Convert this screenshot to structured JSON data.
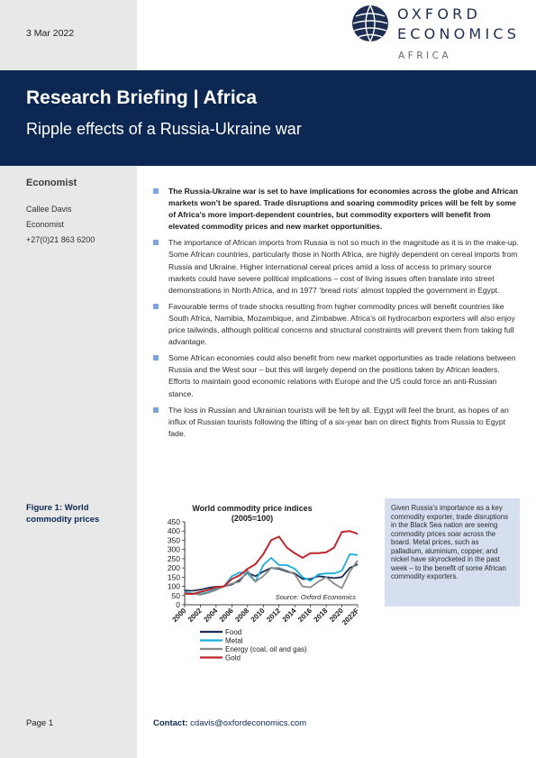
{
  "date": "3 Mar 2022",
  "logo": {
    "line1": "OXFORD",
    "line2": "ECONOMICS",
    "region": "AFRICA"
  },
  "banner": {
    "title": "Research Briefing | Africa",
    "subtitle": "Ripple effects of a Russia-Ukraine war"
  },
  "author": {
    "role": "Economist",
    "name": "Callee Davis",
    "title": "Economist",
    "phone": "+27(0)21 863 6200"
  },
  "bullets": [
    "The Russia-Ukraine war is set to have implications for economies across the globe and African markets won’t be spared. Trade disruptions and soaring commodity prices will be felt by some of Africa’s more import-dependent countries, but commodity exporters will benefit from elevated commodity prices and new market opportunities.",
    "The importance of African imports from Russia is not so much in the magnitude as it is in the make-up. Some African countries, particularly those in North Africa, are highly dependent on cereal imports from Russia and Ukraine. Higher international cereal prices amid a loss of access to primary source markets could have severe political implications – cost of living issues often translate into street demonstrations in North Africa, and in 1977 ‘bread riots’ almost toppled the government in Egypt.",
    "Favourable terms of trade shocks resulting from higher commodity prices will benefit countries like South Africa, Namibia, Mozambique, and Zimbabwe. Africa’s oil hydrocarbon exporters will also enjoy price tailwinds, although political concerns and structural constraints will prevent them from taking full advantage.",
    "Some African economies could also benefit from new market opportunities as trade relations between Russia and the West sour – but this will largely depend on the positions taken by African leaders. Efforts to maintain good economic relations with Europe and the US could force an anti-Russian stance.",
    "The loss in Russian and Ukrainian tourists will be felt by all. Egypt will feel the brunt, as hopes of an influx of Russian tourists following the lifting of a six-year ban on direct flights from Russia to Egypt fade."
  ],
  "figure": {
    "label": "Figure 1: World commodity prices"
  },
  "callout": "Given Russia’s importance as a key commodity exporter, trade disruptions in the Black Sea nation are seeing commodity prices soar across the board. Metal prices, such as palladium, aluminium, copper, and nickel have skyrocketed in the past week – to the benefit of some African commodity exporters.",
  "footer": {
    "page": "Page 1",
    "contact_label": "Contact:",
    "contact_email": "cdavis@oxfordeconomics.com"
  },
  "colors": {
    "navy": "#0b2752",
    "bullet": "#7fa4d9",
    "callout_bg": "#d5dff0",
    "sidebar_bg": "#e8e8e8"
  },
  "chart_data": {
    "type": "line",
    "title": "World commodity price indices",
    "subtitle": "(2005=100)",
    "source": "Source: Oxford Economics",
    "x": [
      "2000",
      "2001",
      "2002",
      "2003",
      "2004",
      "2005",
      "2006",
      "2007",
      "2008",
      "2009",
      "2010",
      "2011",
      "2012",
      "2013",
      "2014",
      "2015",
      "2016",
      "2017",
      "2018",
      "2019",
      "2020",
      "2021",
      "2022F"
    ],
    "xticks": [
      "2000",
      "2002",
      "2004",
      "2006",
      "2008",
      "2010",
      "2012",
      "2014",
      "2016",
      "2018",
      "2020",
      "2022F"
    ],
    "ylim": [
      0,
      450
    ],
    "yticks": [
      0,
      50,
      100,
      150,
      200,
      250,
      300,
      350,
      400,
      450
    ],
    "legend_position": "bottom",
    "grid": false,
    "series": [
      {
        "name": "Food",
        "color": "#1d2e52",
        "values": [
          78,
          76,
          82,
          92,
          98,
          100,
          110,
          135,
          175,
          155,
          180,
          200,
          195,
          180,
          170,
          140,
          140,
          155,
          150,
          145,
          150,
          200,
          220
        ]
      },
      {
        "name": "Metal",
        "color": "#1aaedc",
        "values": [
          70,
          62,
          60,
          68,
          90,
          100,
          155,
          175,
          170,
          125,
          215,
          255,
          215,
          215,
          195,
          150,
          130,
          165,
          170,
          170,
          185,
          275,
          270
        ]
      },
      {
        "name": "Energy (coal, oil and gas)",
        "color": "#8a8a8a",
        "values": [
          65,
          60,
          55,
          65,
          80,
          100,
          115,
          125,
          185,
          125,
          155,
          200,
          200,
          185,
          165,
          100,
          95,
          125,
          150,
          115,
          90,
          180,
          240
        ]
      },
      {
        "name": "Gold",
        "color": "#c0272d",
        "values": [
          60,
          58,
          70,
          80,
          95,
          100,
          140,
          160,
          195,
          220,
          275,
          350,
          370,
          310,
          280,
          255,
          280,
          280,
          285,
          310,
          395,
          400,
          385
        ]
      }
    ]
  }
}
